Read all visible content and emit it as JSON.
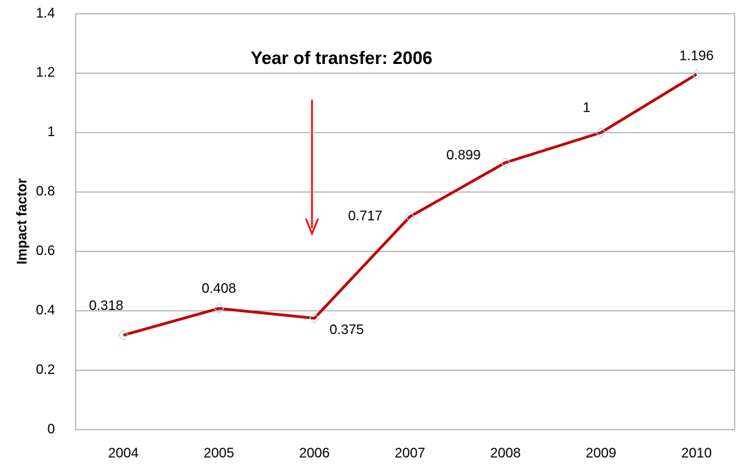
{
  "chart_data": {
    "type": "line",
    "annotation": "Year of transfer: 2006",
    "y_label": "Impact factor",
    "categories": [
      "2004",
      "2005",
      "2006",
      "2007",
      "2008",
      "2009",
      "2010"
    ],
    "series": [
      {
        "color": "#c00000",
        "values": [
          0.318,
          0.408,
          0.375,
          0.717,
          0.899,
          1,
          1.196
        ]
      }
    ],
    "ylim": [
      0,
      1.4
    ],
    "yticks": [
      0,
      0.2,
      0.4,
      0.6,
      0.8,
      1,
      1.2,
      1.4
    ],
    "grid": true
  }
}
